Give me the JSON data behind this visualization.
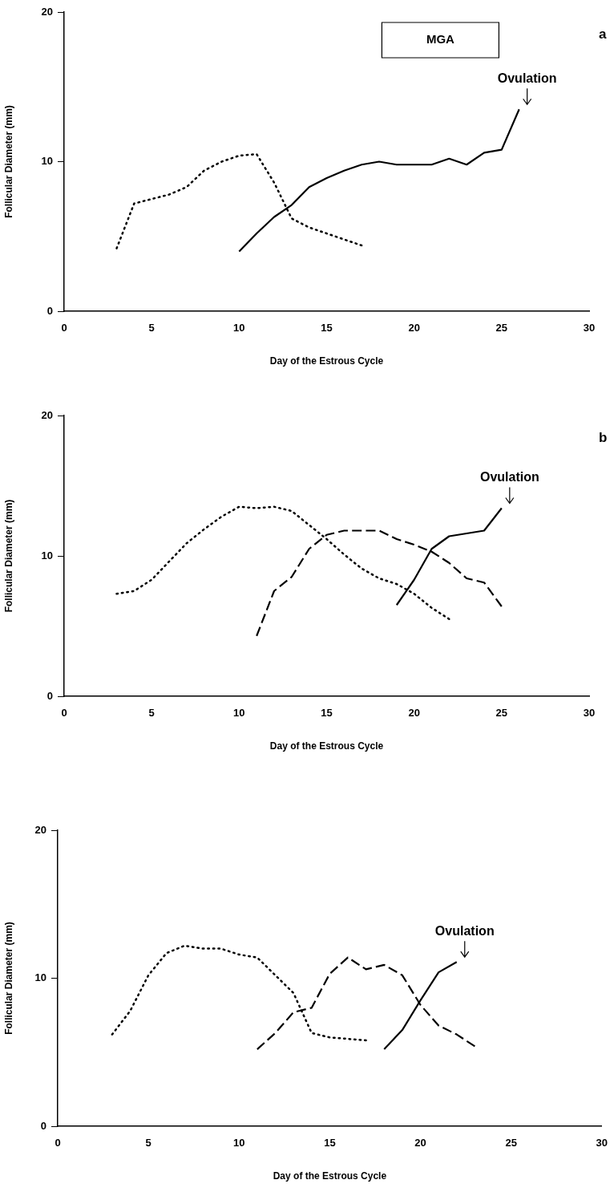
{
  "chart_data": [
    {
      "type": "line",
      "xlabel": "Day of the Estrous Cycle",
      "ylabel": "Follicular Diameter (mm)",
      "xlim": [
        0,
        30
      ],
      "xticks": [
        0,
        5,
        10,
        15,
        20,
        25,
        30
      ],
      "ylim": [
        0,
        20
      ],
      "yticks": [
        0,
        10,
        20
      ],
      "grid": false,
      "legend": false,
      "marker": "none",
      "annotations": [
        "a",
        "MGA",
        "Ovulation"
      ],
      "series": [
        {
          "color": "#000000",
          "line_style": "dotted",
          "x": [
            3,
            4,
            5,
            6,
            7,
            8,
            9,
            10,
            11,
            12,
            13,
            14,
            15,
            16,
            17
          ],
          "values": [
            4.2,
            7.2,
            7.5,
            7.8,
            8.3,
            9.4,
            10.0,
            10.4,
            10.5,
            8.6,
            6.2,
            5.6,
            5.2,
            4.8,
            4.4
          ]
        },
        {
          "color": "#000000",
          "line_style": "solid",
          "x": [
            10,
            11,
            12,
            13,
            14,
            15,
            16,
            17,
            18,
            19,
            20,
            21,
            22,
            23,
            24,
            25,
            26
          ],
          "values": [
            4.0,
            5.2,
            6.3,
            7.1,
            8.3,
            8.9,
            9.4,
            9.8,
            10.0,
            9.8,
            9.8,
            9.8,
            10.2,
            9.8,
            10.6,
            10.8,
            13.5
          ]
        }
      ]
    },
    {
      "type": "line",
      "xlabel": "Day of the Estrous Cycle",
      "ylabel": "Follicular Diameter (mm)",
      "xlim": [
        0,
        30
      ],
      "xticks": [
        0,
        5,
        10,
        15,
        20,
        25,
        30
      ],
      "ylim": [
        0,
        20
      ],
      "yticks": [
        0,
        10,
        20
      ],
      "grid": false,
      "legend": false,
      "marker": "none",
      "annotations": [
        "b",
        "Ovulation"
      ],
      "series": [
        {
          "color": "#000000",
          "line_style": "dotted",
          "x": [
            3,
            4,
            5,
            6,
            7,
            8,
            9,
            10,
            11,
            12,
            13,
            14,
            15,
            16,
            17,
            18,
            19,
            20,
            21,
            22
          ],
          "values": [
            7.3,
            7.5,
            8.3,
            9.6,
            10.9,
            11.9,
            12.8,
            13.5,
            13.4,
            13.5,
            13.2,
            12.2,
            11.2,
            10.1,
            9.1,
            8.4,
            8.0,
            7.3,
            6.3,
            5.5
          ]
        },
        {
          "color": "#000000",
          "line_style": "dashed",
          "x": [
            11,
            12,
            13,
            14,
            15,
            16,
            17,
            18,
            19,
            20,
            21,
            22,
            23,
            24,
            25
          ],
          "values": [
            4.3,
            7.5,
            8.5,
            10.5,
            11.5,
            11.8,
            11.8,
            11.8,
            11.2,
            10.8,
            10.3,
            9.5,
            8.4,
            8.1,
            6.4
          ]
        },
        {
          "color": "#000000",
          "line_style": "solid",
          "x": [
            19,
            20,
            21,
            22,
            23,
            24,
            25
          ],
          "values": [
            6.5,
            8.3,
            10.5,
            11.4,
            11.6,
            11.8,
            13.4
          ]
        }
      ]
    },
    {
      "type": "line",
      "xlabel": "Day of the Estrous Cycle",
      "ylabel": "Follicular Diameter (mm)",
      "xlim": [
        0,
        30
      ],
      "xticks": [
        0,
        5,
        10,
        15,
        20,
        25,
        30
      ],
      "ylim": [
        0,
        20
      ],
      "yticks": [
        0,
        10,
        20
      ],
      "grid": false,
      "legend": false,
      "marker": "none",
      "annotations": [
        "Ovulation"
      ],
      "series": [
        {
          "color": "#000000",
          "line_style": "dotted",
          "x": [
            3,
            4,
            5,
            6,
            7,
            8,
            9,
            10,
            11,
            12,
            13,
            14,
            15,
            16,
            17
          ],
          "values": [
            6.2,
            7.8,
            10.2,
            11.7,
            12.2,
            12.0,
            12.0,
            11.6,
            11.4,
            10.2,
            9.0,
            6.3,
            6.0,
            5.9,
            5.8
          ]
        },
        {
          "color": "#000000",
          "line_style": "dashed",
          "x": [
            11,
            12,
            13,
            14,
            15,
            16,
            17,
            18,
            19,
            20,
            21,
            22,
            23
          ],
          "values": [
            5.2,
            6.3,
            7.7,
            8.0,
            10.3,
            11.4,
            10.6,
            10.9,
            10.2,
            8.2,
            6.8,
            6.2,
            5.4
          ]
        },
        {
          "color": "#000000",
          "line_style": "solid",
          "x": [
            18,
            19,
            20,
            21,
            22
          ],
          "values": [
            5.2,
            6.5,
            8.5,
            10.4,
            11.1
          ]
        }
      ]
    }
  ]
}
